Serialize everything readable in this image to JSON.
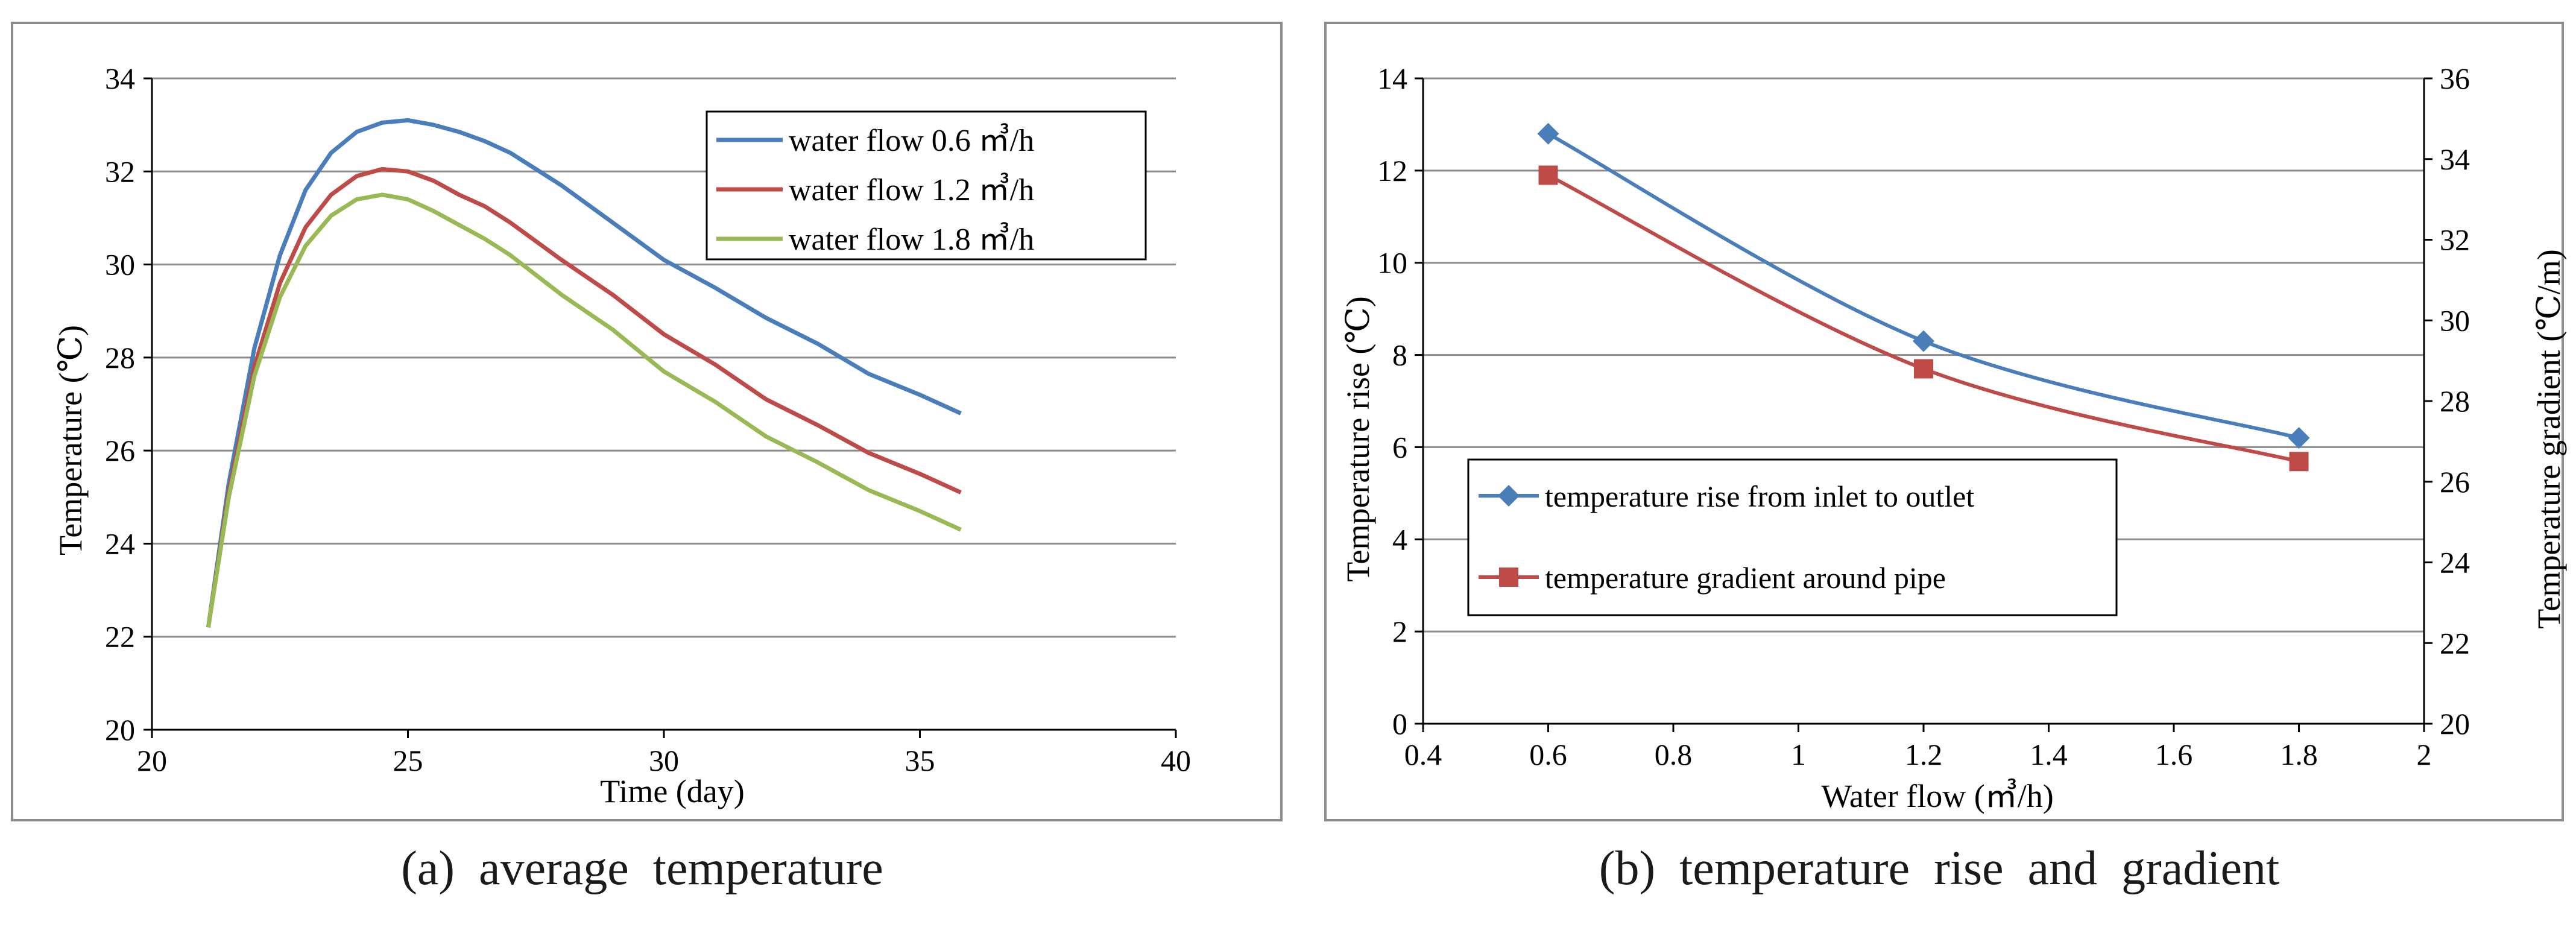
{
  "chart_data": [
    {
      "type": "line",
      "id": "a",
      "title": "",
      "caption": "(a)  average  temperature",
      "xlabel": "Time (day)",
      "ylabel": "Temperature (℃)",
      "xlim": [
        20,
        40
      ],
      "ylim": [
        20,
        34
      ],
      "xticks": [
        20,
        25,
        30,
        35,
        40
      ],
      "yticks": [
        20,
        22,
        24,
        26,
        28,
        30,
        32,
        34
      ],
      "grid": "horizontal",
      "legend_position": "top-right",
      "series": [
        {
          "name": "water flow  0.6 ㎥/h",
          "color": "#4a7ebb",
          "x": [
            21.1,
            21.5,
            22,
            22.5,
            23,
            23.5,
            24,
            24.5,
            25,
            25.5,
            26,
            26.5,
            27,
            28,
            29,
            30,
            31,
            32,
            33,
            34,
            35,
            35.8
          ],
          "y": [
            22.2,
            25.3,
            28.2,
            30.2,
            31.6,
            32.4,
            32.85,
            33.05,
            33.1,
            33.0,
            32.85,
            32.65,
            32.4,
            31.7,
            30.9,
            30.1,
            29.5,
            28.85,
            28.3,
            27.65,
            27.2,
            26.8
          ]
        },
        {
          "name": "water flow  1.2 ㎥/h",
          "color": "#be4b48",
          "x": [
            21.1,
            21.5,
            22,
            22.5,
            23,
            23.5,
            24,
            24.5,
            25,
            25.5,
            26,
            26.5,
            27,
            28,
            29,
            30,
            31,
            32,
            33,
            34,
            35,
            35.8
          ],
          "y": [
            22.2,
            25.1,
            27.8,
            29.6,
            30.8,
            31.5,
            31.9,
            32.05,
            32.0,
            31.8,
            31.5,
            31.25,
            30.9,
            30.1,
            29.35,
            28.5,
            27.85,
            27.1,
            26.55,
            25.95,
            25.5,
            25.1
          ]
        },
        {
          "name": "water flow  1.8 ㎥/h",
          "color": "#98b954",
          "x": [
            21.1,
            21.5,
            22,
            22.5,
            23,
            23.5,
            24,
            24.5,
            25,
            25.5,
            26,
            26.5,
            27,
            28,
            29,
            30,
            31,
            32,
            33,
            34,
            35,
            35.8
          ],
          "y": [
            22.2,
            25.0,
            27.6,
            29.3,
            30.4,
            31.05,
            31.4,
            31.5,
            31.4,
            31.15,
            30.85,
            30.55,
            30.2,
            29.35,
            28.6,
            27.7,
            27.05,
            26.3,
            25.75,
            25.15,
            24.7,
            24.3
          ]
        }
      ]
    },
    {
      "type": "line",
      "id": "b",
      "title": "",
      "caption": "(b)  temperature  rise  and  gradient",
      "xlabel": "Water flow (㎥/h)",
      "ylabel": "Temperature  rise  (℃)",
      "y2label": "Temperature gradient (℃/m)",
      "xlim": [
        0.4,
        2
      ],
      "ylim": [
        0,
        14
      ],
      "y2lim": [
        20,
        36
      ],
      "xticks": [
        "0.4",
        "0.6",
        "0.8",
        "1",
        "1.2",
        "1.4",
        "1.6",
        "1.8",
        "2"
      ],
      "yticks": [
        0,
        2,
        4,
        6,
        8,
        10,
        12,
        14
      ],
      "y2ticks": [
        20,
        22,
        24,
        26,
        28,
        30,
        32,
        34,
        36
      ],
      "grid": "horizontal",
      "legend_position": "bottom-left",
      "series": [
        {
          "name": "temperature rise from inlet to outlet",
          "axis": "left",
          "marker": "diamond",
          "color": "#4a7ebb",
          "x": [
            0.6,
            1.2,
            1.8
          ],
          "y": [
            12.8,
            8.3,
            6.2
          ]
        },
        {
          "name": "temperature gradient around pipe",
          "axis": "right",
          "marker": "square",
          "color": "#be4b48",
          "x": [
            0.6,
            1.2,
            1.8
          ],
          "y": [
            33.6,
            28.8,
            26.5
          ]
        }
      ]
    }
  ]
}
